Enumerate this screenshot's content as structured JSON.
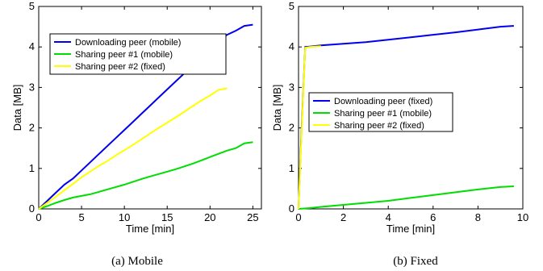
{
  "chart_data": [
    {
      "type": "line",
      "caption": "(a)  Mobile",
      "xlabel": "Time [min]",
      "ylabel": "Data [MB]",
      "xlim": [
        0,
        26
      ],
      "ylim": [
        0,
        5
      ],
      "xticks": [
        0,
        5,
        10,
        15,
        20,
        25
      ],
      "yticks": [
        0,
        1,
        2,
        3,
        4,
        5
      ],
      "legend_position": "upper-left",
      "series": [
        {
          "name": "Downloading peer (mobile)",
          "color": "#0000ee",
          "x": [
            0,
            1,
            2,
            3,
            4,
            5,
            6,
            7,
            8,
            9,
            10,
            11,
            12,
            13,
            14,
            15,
            16,
            17,
            18,
            19,
            20,
            21,
            22,
            23,
            24,
            25
          ],
          "y": [
            0,
            0.2,
            0.4,
            0.6,
            0.75,
            0.95,
            1.15,
            1.35,
            1.55,
            1.75,
            1.95,
            2.15,
            2.35,
            2.55,
            2.75,
            2.95,
            3.15,
            3.35,
            3.55,
            3.75,
            3.95,
            4.15,
            4.3,
            4.4,
            4.52,
            4.55
          ]
        },
        {
          "name": "Sharing peer #1 (mobile)",
          "color": "#00dd00",
          "x": [
            0,
            1,
            2,
            3,
            4,
            5,
            6,
            7,
            8,
            9,
            10,
            11,
            12,
            13,
            14,
            15,
            16,
            17,
            18,
            19,
            20,
            21,
            22,
            23,
            24,
            25
          ],
          "y": [
            0,
            0.07,
            0.15,
            0.22,
            0.28,
            0.32,
            0.36,
            0.42,
            0.48,
            0.54,
            0.6,
            0.67,
            0.74,
            0.8,
            0.86,
            0.92,
            0.98,
            1.05,
            1.12,
            1.2,
            1.28,
            1.36,
            1.44,
            1.5,
            1.62,
            1.65
          ]
        },
        {
          "name": "Sharing peer #2 (fixed)",
          "color": "#ffff00",
          "x": [
            0,
            1,
            2,
            3,
            4,
            5,
            6,
            7,
            8,
            9,
            10,
            11,
            12,
            13,
            14,
            15,
            16,
            17,
            18,
            19,
            20,
            21,
            22
          ],
          "y": [
            0,
            0.15,
            0.3,
            0.46,
            0.62,
            0.78,
            0.92,
            1.06,
            1.18,
            1.32,
            1.45,
            1.58,
            1.72,
            1.86,
            2.0,
            2.13,
            2.26,
            2.4,
            2.54,
            2.68,
            2.8,
            2.94,
            2.98
          ]
        }
      ]
    },
    {
      "type": "line",
      "caption": "(b)  Fixed",
      "xlabel": "Time [min]",
      "ylabel": "Data [MB]",
      "xlim": [
        0,
        10
      ],
      "ylim": [
        0,
        5
      ],
      "xticks": [
        0,
        2,
        4,
        6,
        8,
        10
      ],
      "yticks": [
        0,
        1,
        2,
        3,
        4,
        5
      ],
      "legend_position": "center-left",
      "series": [
        {
          "name": "Downloading peer (fixed)",
          "color": "#0000ee",
          "x": [
            0,
            0.1,
            0.3,
            0.5,
            1,
            2,
            3,
            4,
            5,
            6,
            7,
            8,
            9,
            9.6
          ],
          "y": [
            0,
            1.5,
            4.0,
            4.01,
            4.04,
            4.08,
            4.12,
            4.18,
            4.24,
            4.3,
            4.36,
            4.43,
            4.5,
            4.52
          ]
        },
        {
          "name": "Sharing peer #1 (mobile)",
          "color": "#00dd00",
          "x": [
            0,
            0.5,
            1,
            2,
            3,
            4,
            5,
            6,
            7,
            8,
            9,
            9.6
          ],
          "y": [
            0,
            0.02,
            0.05,
            0.1,
            0.15,
            0.2,
            0.27,
            0.34,
            0.41,
            0.48,
            0.54,
            0.56
          ]
        },
        {
          "name": "Sharing peer #2 (fixed)",
          "color": "#ffff00",
          "x": [
            0,
            0.1,
            0.3,
            0.5,
            1.0
          ],
          "y": [
            0,
            1.4,
            3.98,
            4.0,
            4.02
          ]
        }
      ]
    }
  ]
}
